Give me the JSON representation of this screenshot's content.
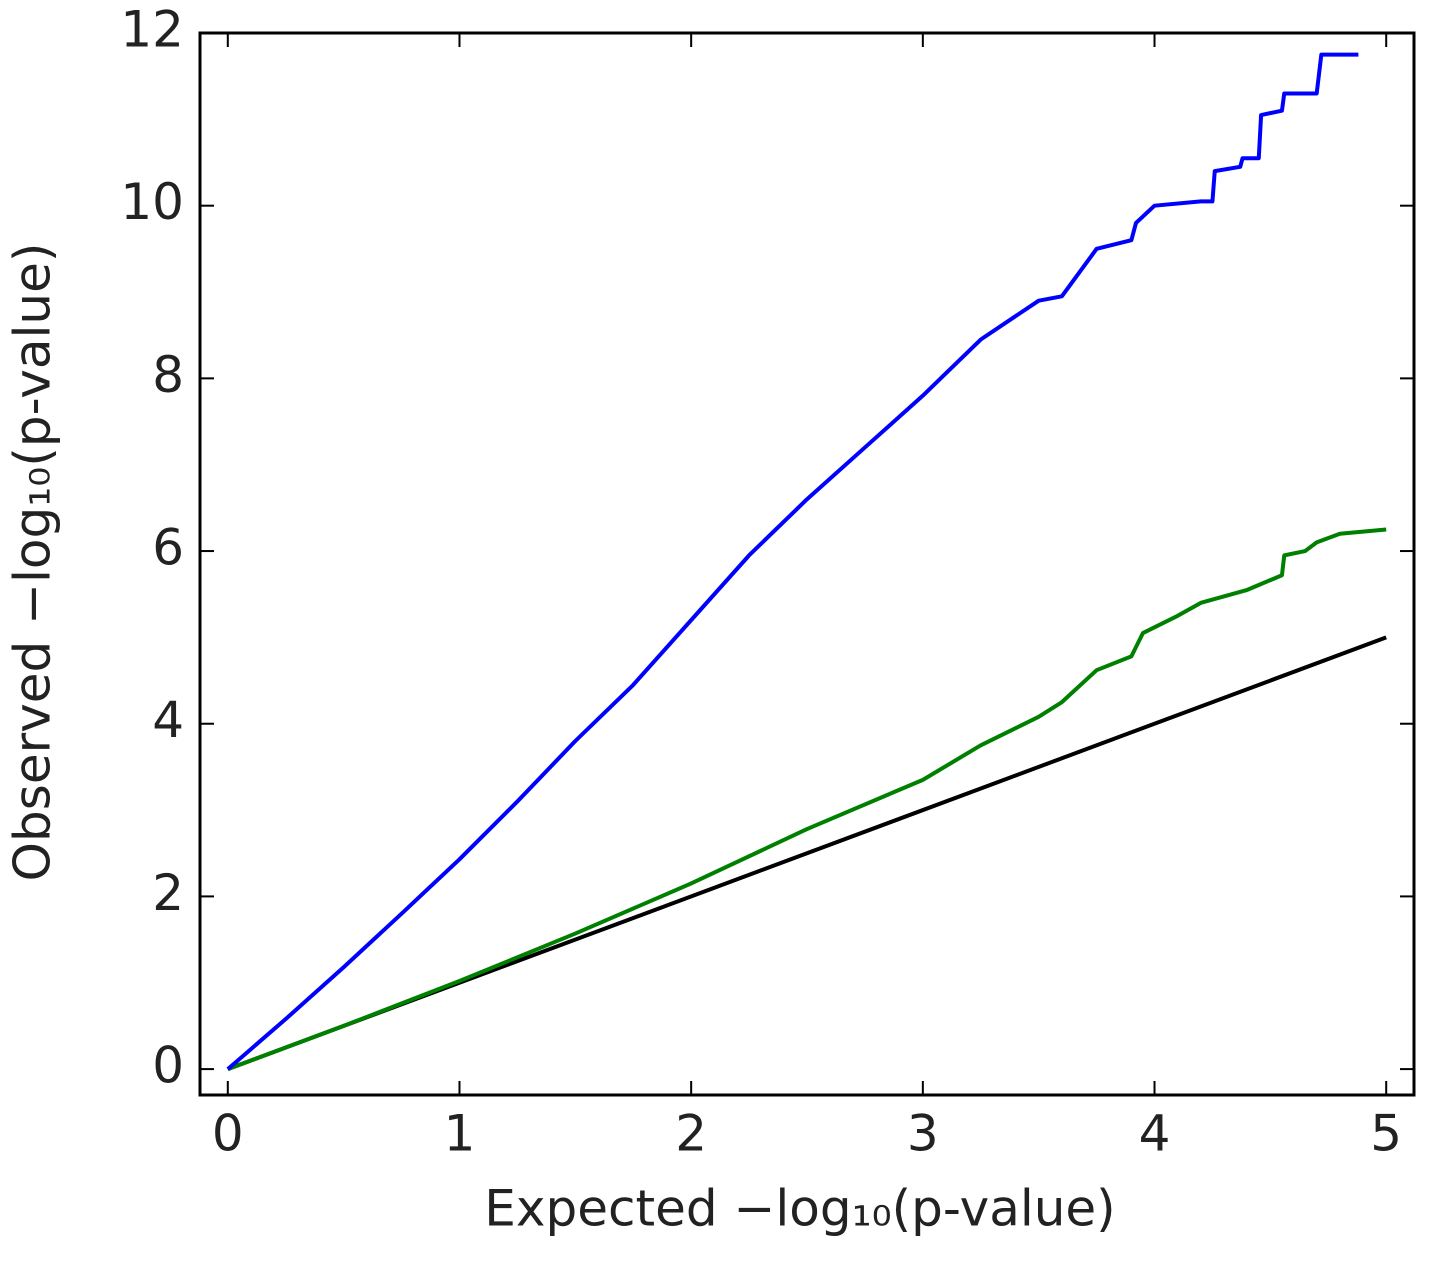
{
  "chart_data": {
    "type": "line",
    "x_label": "Expected −log₁₀(p-value)",
    "y_label": "Observed −log₁₀(p-value)",
    "xlim": [
      -0.12,
      5.12
    ],
    "ylim": [
      -0.3,
      12
    ],
    "xticks": [
      0,
      1,
      2,
      3,
      4,
      5
    ],
    "yticks": [
      0,
      2,
      4,
      6,
      8,
      10,
      12
    ],
    "grid": false,
    "series": [
      {
        "color": "#0000ff",
        "x": [
          0,
          0.25,
          0.5,
          0.75,
          1,
          1.25,
          1.5,
          1.75,
          2,
          2.25,
          2.5,
          2.75,
          3,
          3.25,
          3.5,
          3.6,
          3.75,
          3.9,
          3.92,
          4.0,
          4.2,
          4.25,
          4.26,
          4.37,
          4.38,
          4.45,
          4.46,
          4.55,
          4.56,
          4.7,
          4.72,
          4.88
        ],
        "values": [
          0,
          0.58,
          1.18,
          1.8,
          2.43,
          3.1,
          3.8,
          4.45,
          5.2,
          5.95,
          6.6,
          7.2,
          7.8,
          8.45,
          8.9,
          8.95,
          9.5,
          9.6,
          9.8,
          10.0,
          10.05,
          10.05,
          10.4,
          10.45,
          10.55,
          10.55,
          11.05,
          11.1,
          11.3,
          11.3,
          11.75,
          11.75
        ]
      },
      {
        "color": "#008000",
        "x": [
          0,
          0.5,
          1,
          1.5,
          2,
          2.5,
          3,
          3.25,
          3.5,
          3.6,
          3.75,
          3.9,
          3.95,
          4.1,
          4.2,
          4.4,
          4.55,
          4.56,
          4.65,
          4.7,
          4.8,
          5.0
        ],
        "values": [
          0,
          0.5,
          1.02,
          1.57,
          2.15,
          2.78,
          3.35,
          3.75,
          4.08,
          4.25,
          4.62,
          4.78,
          5.05,
          5.25,
          5.4,
          5.55,
          5.72,
          5.95,
          6.0,
          6.1,
          6.2,
          6.25
        ]
      },
      {
        "color": "#000000",
        "x": [
          0,
          5
        ],
        "values": [
          0,
          5
        ]
      }
    ]
  }
}
